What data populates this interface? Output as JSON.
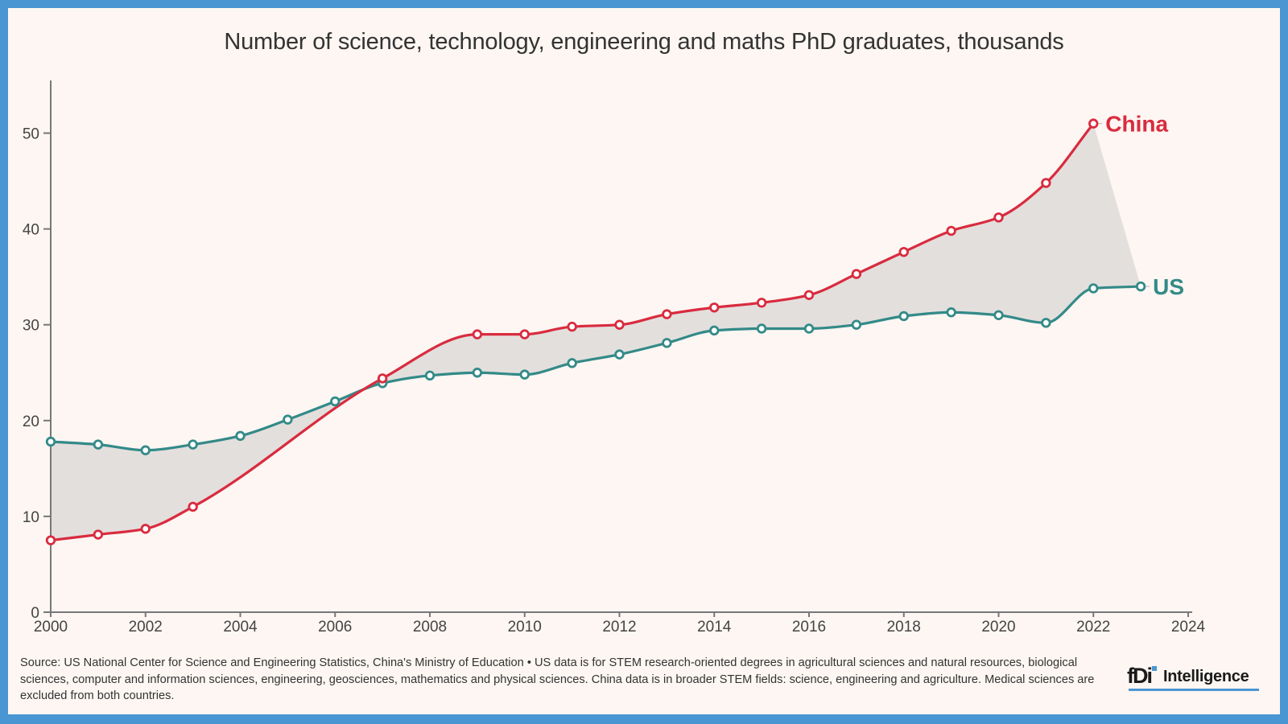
{
  "colors": {
    "frame": "#4a96d2",
    "background": "#fdf6f2",
    "china": "#d92b3f",
    "us": "#338a88",
    "gap_fill": "#e3dfdd",
    "axis": "#777777"
  },
  "chart_data": {
    "type": "line",
    "title": "Number of science, technology, engineering and maths PhD graduates, thousands",
    "xlabel": "",
    "ylabel": "",
    "xlim": [
      2000,
      2024
    ],
    "ylim": [
      0,
      55.5
    ],
    "x_ticks": [
      2000,
      2002,
      2004,
      2006,
      2008,
      2010,
      2012,
      2014,
      2016,
      2018,
      2020,
      2022,
      2024
    ],
    "y_ticks": [
      0,
      10,
      20,
      30,
      40,
      50
    ],
    "grid": false,
    "legend": "direct labels at line ends (right)",
    "shaded_gap_between_series": true,
    "series": [
      {
        "name": "China",
        "label": "China",
        "color": "#d92b3f",
        "points": [
          {
            "x": 2000,
            "y": 7.5,
            "marker": true
          },
          {
            "x": 2001,
            "y": 8.1,
            "marker": true
          },
          {
            "x": 2002,
            "y": 8.7,
            "marker": true
          },
          {
            "x": 2003,
            "y": 11.0,
            "marker": true
          },
          {
            "x": 2007,
            "y": 24.4,
            "marker": true
          },
          {
            "x": 2009,
            "y": 29.0,
            "marker": true
          },
          {
            "x": 2010,
            "y": 29.0,
            "marker": true
          },
          {
            "x": 2011,
            "y": 29.8,
            "marker": true
          },
          {
            "x": 2012,
            "y": 30.0,
            "marker": true
          },
          {
            "x": 2013,
            "y": 31.1,
            "marker": true
          },
          {
            "x": 2014,
            "y": 31.8,
            "marker": true
          },
          {
            "x": 2015,
            "y": 32.3,
            "marker": true
          },
          {
            "x": 2016,
            "y": 33.1,
            "marker": true
          },
          {
            "x": 2017,
            "y": 35.3,
            "marker": true
          },
          {
            "x": 2018,
            "y": 37.6,
            "marker": true
          },
          {
            "x": 2019,
            "y": 39.8,
            "marker": true
          },
          {
            "x": 2020,
            "y": 41.2,
            "marker": true
          },
          {
            "x": 2021,
            "y": 44.8,
            "marker": true
          },
          {
            "x": 2022,
            "y": 51.0,
            "marker": true
          }
        ]
      },
      {
        "name": "US",
        "label": "US",
        "color": "#338a88",
        "points": [
          {
            "x": 2000,
            "y": 17.8,
            "marker": true
          },
          {
            "x": 2001,
            "y": 17.5,
            "marker": true
          },
          {
            "x": 2002,
            "y": 16.9,
            "marker": true
          },
          {
            "x": 2003,
            "y": 17.5,
            "marker": true
          },
          {
            "x": 2004,
            "y": 18.4,
            "marker": true
          },
          {
            "x": 2005,
            "y": 20.1,
            "marker": true
          },
          {
            "x": 2006,
            "y": 22.0,
            "marker": true
          },
          {
            "x": 2007,
            "y": 23.9,
            "marker": true
          },
          {
            "x": 2008,
            "y": 24.7,
            "marker": true
          },
          {
            "x": 2009,
            "y": 25.0,
            "marker": true
          },
          {
            "x": 2010,
            "y": 24.8,
            "marker": true
          },
          {
            "x": 2011,
            "y": 26.0,
            "marker": true
          },
          {
            "x": 2012,
            "y": 26.9,
            "marker": true
          },
          {
            "x": 2013,
            "y": 28.1,
            "marker": true
          },
          {
            "x": 2014,
            "y": 29.4,
            "marker": true
          },
          {
            "x": 2015,
            "y": 29.6,
            "marker": true
          },
          {
            "x": 2016,
            "y": 29.6,
            "marker": true
          },
          {
            "x": 2017,
            "y": 30.0,
            "marker": true
          },
          {
            "x": 2018,
            "y": 30.9,
            "marker": true
          },
          {
            "x": 2019,
            "y": 31.3,
            "marker": true
          },
          {
            "x": 2020,
            "y": 31.0,
            "marker": true
          },
          {
            "x": 2021,
            "y": 30.2,
            "marker": true
          },
          {
            "x": 2022,
            "y": 33.8,
            "marker": true
          },
          {
            "x": 2023,
            "y": 34.0,
            "marker": true
          }
        ]
      }
    ]
  },
  "footer": {
    "source_text": "Source: US National Center for Science and Engineering Statistics, China's Ministry of Education • US data is for STEM research-oriented degrees in agricultural sciences and natural resources, biological sciences, computer and information sciences, engineering, geosciences, mathematics and physical sciences. China data is in broader STEM fields: science, engineering and agriculture. Medical sciences are excluded from both countries."
  },
  "logo": {
    "mark": "fDi",
    "text": "Intelligence"
  }
}
